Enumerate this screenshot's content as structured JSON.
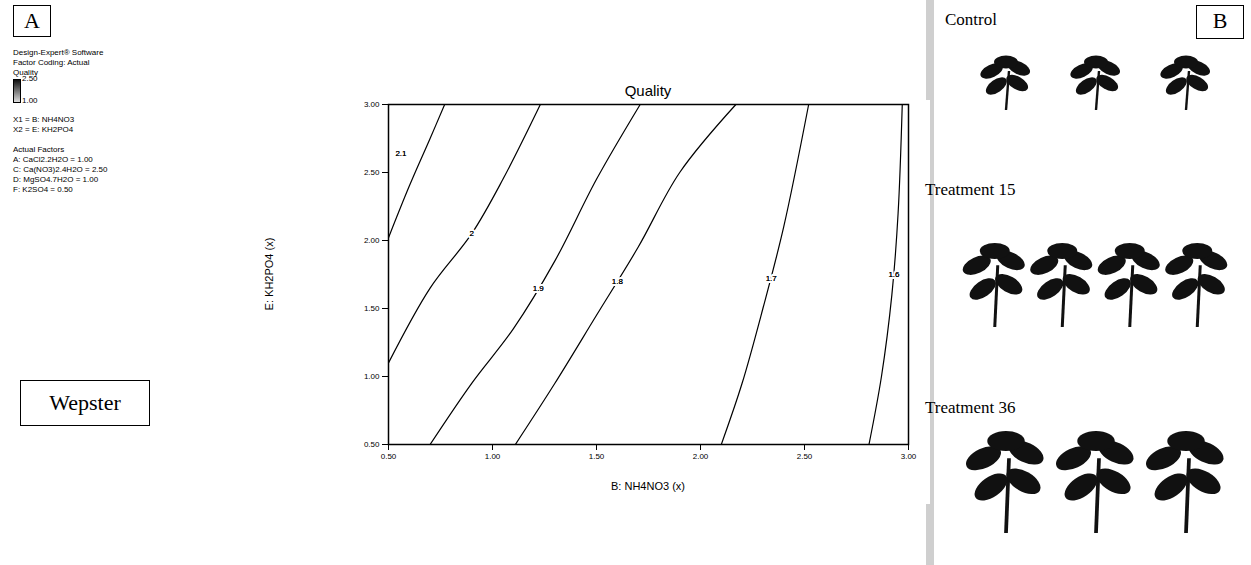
{
  "chart_data": {
    "type": "contour",
    "title": "Quality",
    "x_label": "B: NH4NO3 (x)",
    "y_label": "E: KH2PO4 (x)",
    "xlim": [
      0.5,
      3.0
    ],
    "ylim": [
      0.5,
      3.0
    ],
    "xticks": [
      {
        "value": 0.5,
        "label": "0.50"
      },
      {
        "value": 1.0,
        "label": "1.00"
      },
      {
        "value": 1.5,
        "label": "1.50"
      },
      {
        "value": 2.0,
        "label": "2.00"
      },
      {
        "value": 2.5,
        "label": "2.50"
      },
      {
        "value": 3.0,
        "label": "3.00"
      }
    ],
    "yticks": [
      {
        "value": 0.5,
        "label": "0.50"
      },
      {
        "value": 1.0,
        "label": "1.00"
      },
      {
        "value": 1.5,
        "label": "1.50"
      },
      {
        "value": 2.0,
        "label": "2.00"
      },
      {
        "value": 2.5,
        "label": "2.50"
      },
      {
        "value": 3.0,
        "label": "3.00"
      }
    ],
    "grid": false,
    "color": "#000000",
    "series": [
      {
        "name": "2.1",
        "x": [
          0.5,
          0.6,
          0.7,
          0.77
        ],
        "values": [
          2.02,
          2.4,
          2.75,
          3.0
        ],
        "label_x": 0.56,
        "label_y": 2.64
      },
      {
        "name": "2",
        "x": [
          0.5,
          0.7,
          0.9,
          1.05,
          1.23
        ],
        "values": [
          1.1,
          1.65,
          2.05,
          2.45,
          3.0
        ],
        "label_x": 0.9,
        "label_y": 2.05
      },
      {
        "name": "1.9",
        "x": [
          0.7,
          0.9,
          1.1,
          1.3,
          1.5,
          1.71
        ],
        "values": [
          0.5,
          0.95,
          1.35,
          1.85,
          2.45,
          3.0
        ],
        "label_x": 1.22,
        "label_y": 1.65
      },
      {
        "name": "1.8",
        "x": [
          1.11,
          1.3,
          1.5,
          1.7,
          1.9,
          2.17
        ],
        "values": [
          0.5,
          0.95,
          1.45,
          1.95,
          2.5,
          3.0
        ],
        "label_x": 1.6,
        "label_y": 1.7
      },
      {
        "name": "1.7",
        "x": [
          2.1,
          2.2,
          2.3,
          2.4,
          2.52
        ],
        "values": [
          0.5,
          0.95,
          1.5,
          2.1,
          3.0
        ],
        "label_x": 2.34,
        "label_y": 1.72
      },
      {
        "name": "1.6",
        "x": [
          2.81,
          2.87,
          2.92,
          2.95,
          2.97
        ],
        "values": [
          0.5,
          1.0,
          1.6,
          2.2,
          3.0
        ],
        "label_x": 2.93,
        "label_y": 1.75
      }
    ],
    "color_bar": {
      "title": "Quality",
      "range": [
        1.0,
        2.5
      ],
      "ticks": [
        {
          "value": 2.5,
          "label": "2.50"
        },
        {
          "value": 1.0,
          "label": "1.00"
        }
      ]
    }
  },
  "panel_a": {
    "letter": "A",
    "software": "Design-Expert® Software",
    "factor_coding": "Factor Coding: Actual",
    "axes_info": [
      "X1 = B: NH4NO3",
      "X2 = E: KH2PO4"
    ],
    "actual_factors_title": "Actual Factors",
    "actual_factors": [
      "A: CaCl2.2H2O = 1.00",
      "C: Ca(NO3)2.4H2O = 2.50",
      "D: MgSO4.7H2O = 1.00",
      "F: K2SO4 = 0.50"
    ],
    "box_text": "Wepster"
  },
  "panel_b": {
    "letter": "B",
    "images": [
      "Control",
      "Treatment 15",
      "Treatment 36"
    ]
  }
}
